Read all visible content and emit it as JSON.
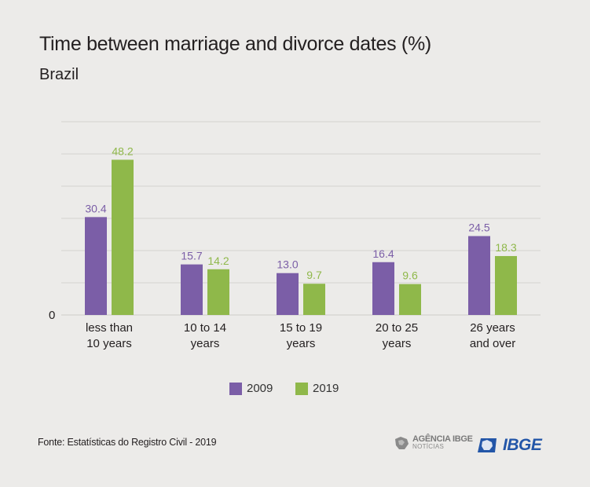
{
  "header": {
    "title": "Time between marriage and divorce dates (%)",
    "subtitle": "Brazil"
  },
  "colors": {
    "series_2009": "#7b5ea7",
    "series_2019": "#8fb84a",
    "grid": "#d4d3d0",
    "axis_text": "#231f20",
    "ibge_blue": "#2356a8"
  },
  "chart_data": {
    "type": "bar",
    "title": "Time between marriage and divorce dates (%)",
    "subtitle": "Brazil",
    "categories": [
      [
        "less than",
        "10 years"
      ],
      [
        "10 to 14",
        "years"
      ],
      [
        "15 to 19",
        "years"
      ],
      [
        "20 to 25",
        "years"
      ],
      [
        "26 years",
        "and over"
      ]
    ],
    "series": [
      {
        "name": "2009",
        "values": [
          30.4,
          15.7,
          13.0,
          16.4,
          24.5
        ],
        "labels": [
          "30.4",
          "15.7",
          "13.0",
          "16.4",
          "24.5"
        ]
      },
      {
        "name": "2019",
        "values": [
          48.2,
          14.2,
          9.7,
          9.6,
          18.3
        ],
        "labels": [
          "48.2",
          "14.2",
          "9.7",
          "9.6",
          "18.3"
        ]
      }
    ],
    "y_axis_label": "0",
    "ylim": [
      0,
      60
    ],
    "grid": true,
    "legend_position": "bottom-center"
  },
  "legend": {
    "items": [
      "2009",
      "2019"
    ]
  },
  "footer": {
    "source": "Fonte: Estatísticas do Registro Civil - 2019",
    "agencia_line1": "AGÊNCIA IBGE",
    "agencia_line2": "NOTÍCIAS",
    "ibge_wordmark": "IBGE"
  }
}
